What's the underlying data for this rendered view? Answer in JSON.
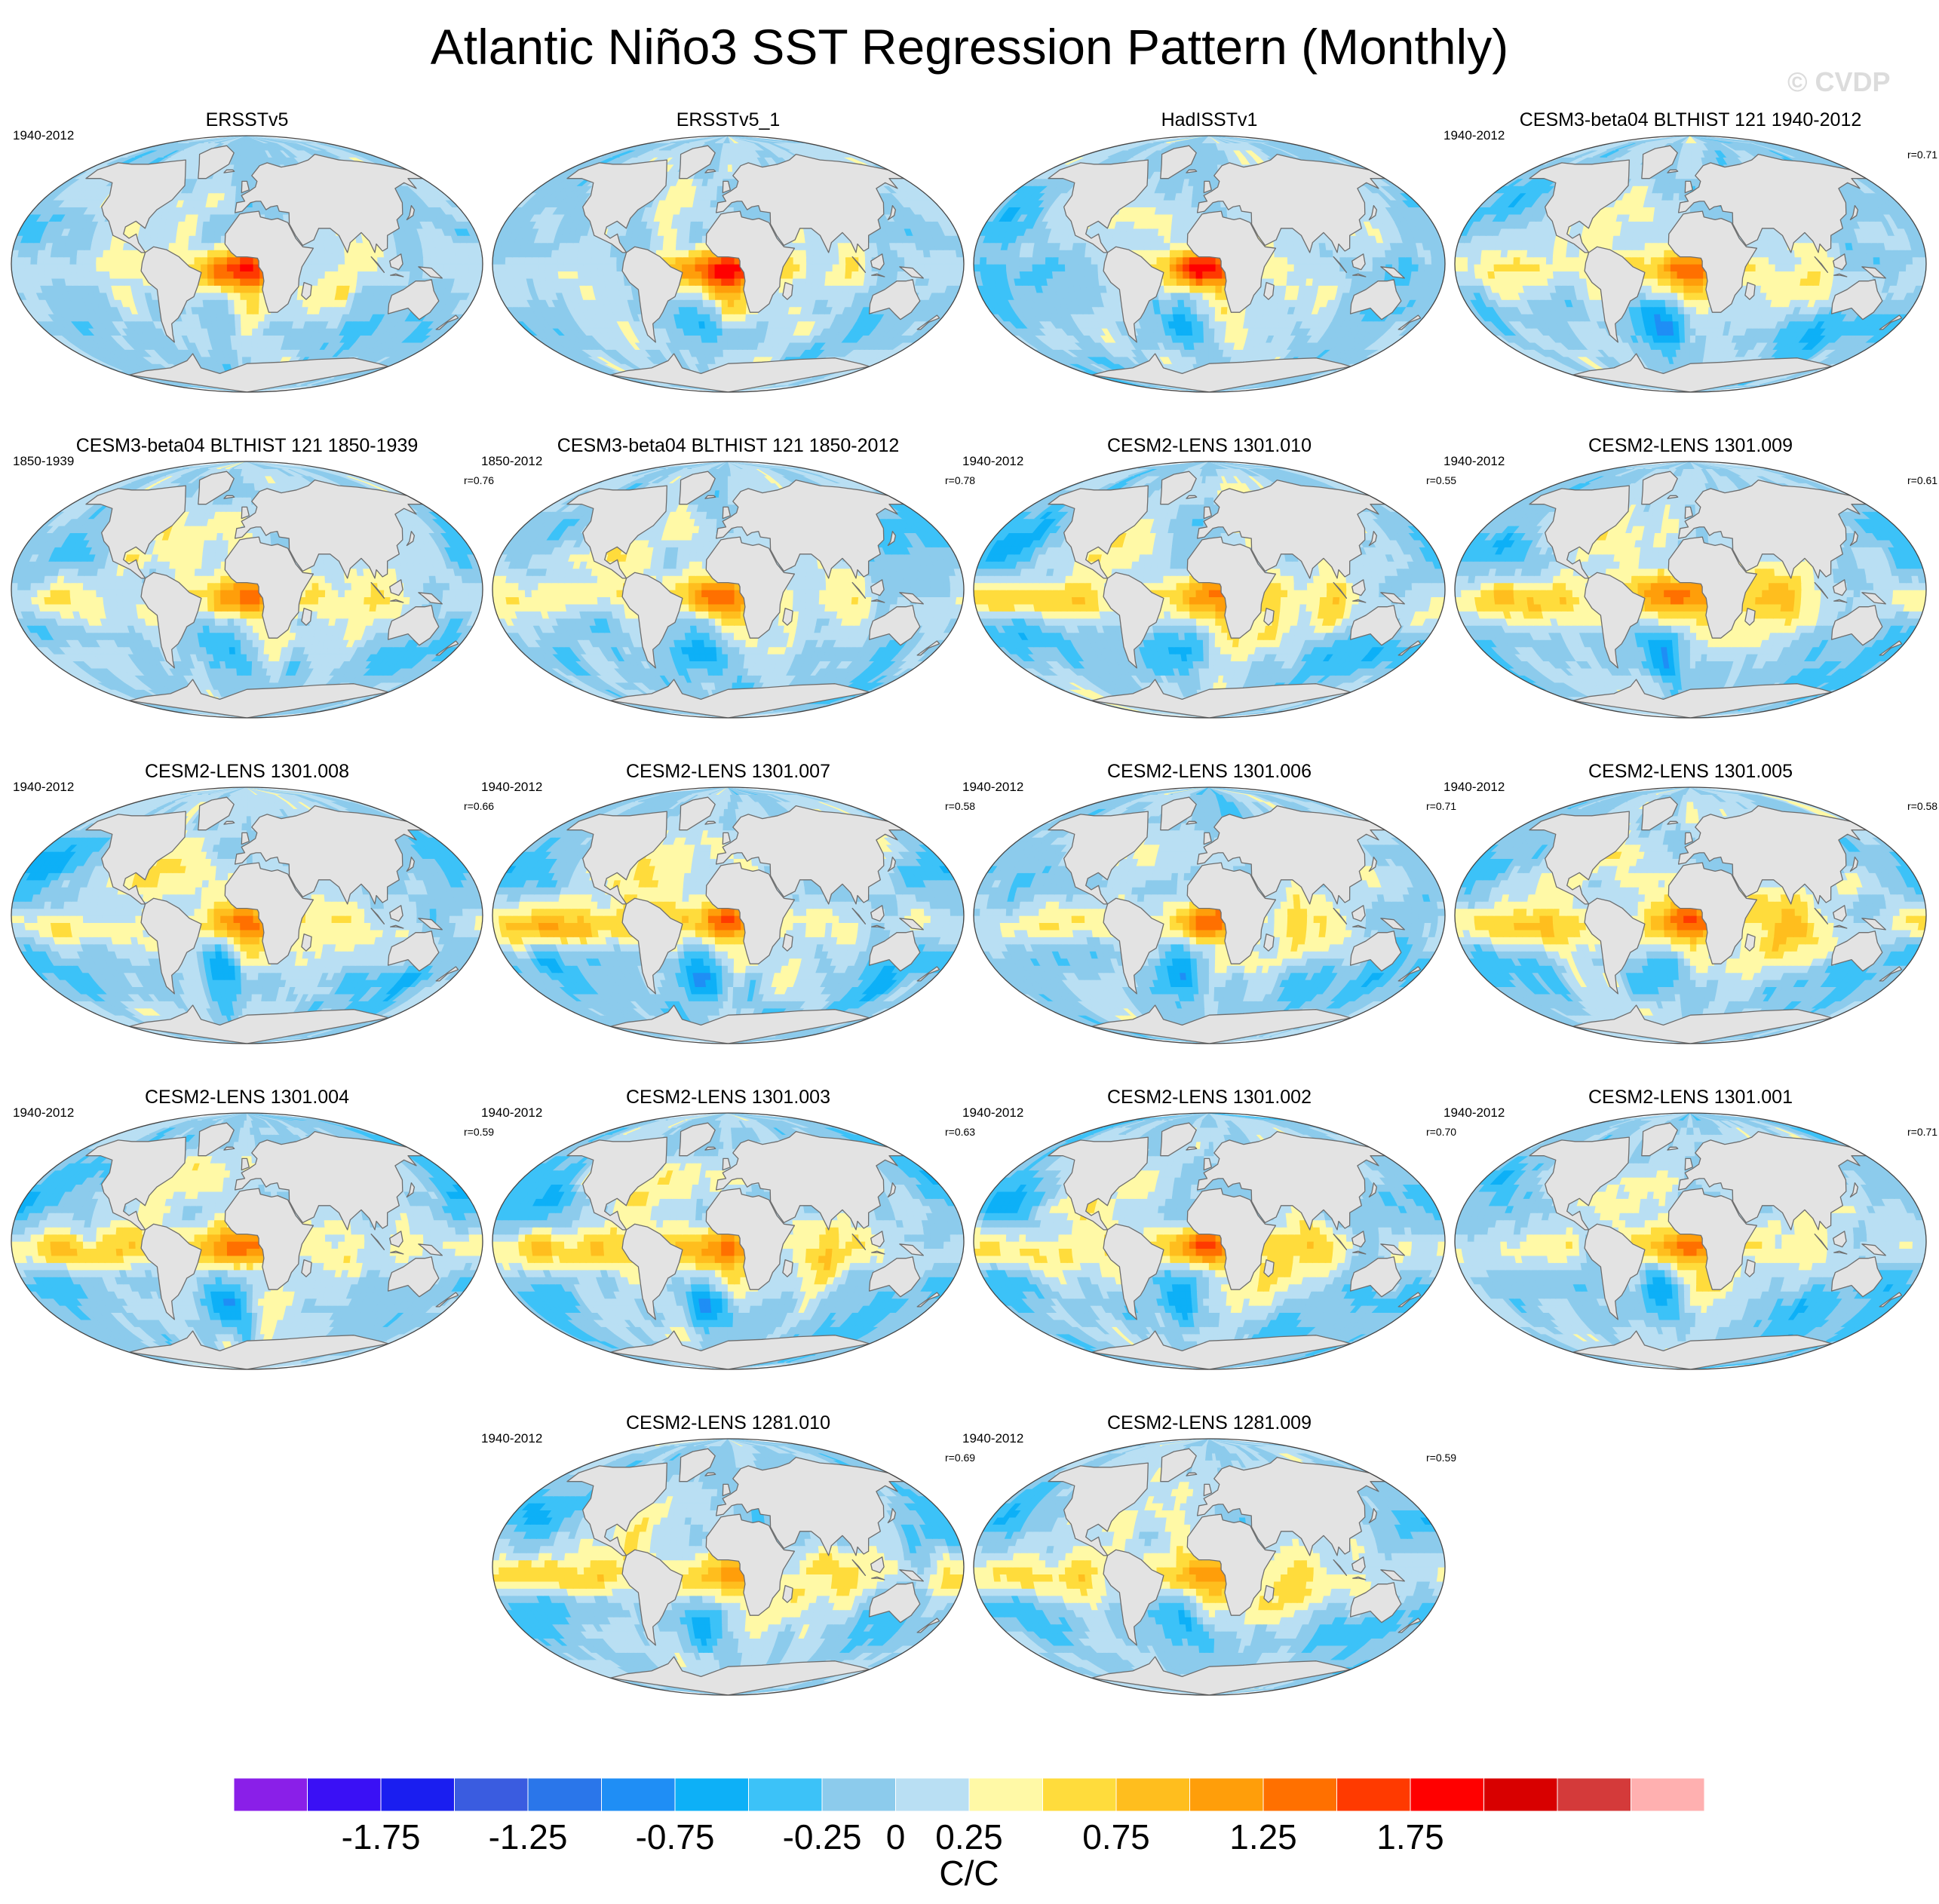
{
  "title": "Atlantic Niño3 SST Regression Pattern (Monthly)",
  "watermark": "© CVDP",
  "panels": [
    {
      "name": "ERSSTv5",
      "period": "1940-2012",
      "corr": "",
      "pattern": {
        "atl": 1.25,
        "pac": 0.15,
        "ind": 0.4,
        "sa": -0.4,
        "np": -0.1,
        "seed": 3
      }
    },
    {
      "name": "ERSSTv5_1",
      "period": "",
      "corr": "",
      "pattern": {
        "atl": 1.4,
        "pac": 0.2,
        "ind": 0.4,
        "sa": -0.35,
        "np": 0.0,
        "seed": 7
      }
    },
    {
      "name": "HadISSTv1",
      "period": "",
      "corr": "",
      "pattern": {
        "atl": 1.4,
        "pac": -0.35,
        "ind": 0.3,
        "sa": -0.45,
        "np": -0.25,
        "seed": 11
      }
    },
    {
      "name": "CESM3-beta04 BLTHIST 121 1940-2012",
      "period": "1940-2012",
      "corr": "r=0.71",
      "pattern": {
        "atl": 1.1,
        "pac": 0.35,
        "ind": 0.45,
        "sa": -0.7,
        "np": -0.3,
        "seed": 13
      }
    },
    {
      "name": "CESM3-beta04 BLTHIST 121 1850-1939",
      "period": "1850-1939",
      "corr": "r=0.76",
      "pattern": {
        "atl": 1.1,
        "pac": 0.55,
        "ind": 0.5,
        "sa": -0.6,
        "np": -0.3,
        "seed": 17
      }
    },
    {
      "name": "CESM3-beta04 BLTHIST 121 1850-2012",
      "period": "1850-2012",
      "corr": "r=0.78",
      "pattern": {
        "atl": 1.05,
        "pac": 0.45,
        "ind": 0.45,
        "sa": -0.55,
        "np": -0.2,
        "seed": 19
      }
    },
    {
      "name": "CESM2-LENS 1301.010",
      "period": "1940-2012",
      "corr": "r=0.55",
      "pattern": {
        "atl": 0.95,
        "pac": 0.9,
        "ind": 0.6,
        "sa": -0.7,
        "np": -0.6,
        "seed": 23
      }
    },
    {
      "name": "CESM2-LENS 1301.009",
      "period": "1940-2012",
      "corr": "r=0.61",
      "pattern": {
        "atl": 1.0,
        "pac": 0.85,
        "ind": 0.7,
        "sa": -0.7,
        "np": -0.6,
        "seed": 29
      }
    },
    {
      "name": "CESM2-LENS 1301.008",
      "period": "1940-2012",
      "corr": "r=0.66",
      "pattern": {
        "atl": 0.95,
        "pac": 0.65,
        "ind": 0.55,
        "sa": -0.6,
        "np": -0.4,
        "seed": 31
      }
    },
    {
      "name": "CESM2-LENS 1301.007",
      "period": "1940-2012",
      "corr": "r=0.58",
      "pattern": {
        "atl": 0.95,
        "pac": 1.05,
        "ind": 0.55,
        "sa": -0.75,
        "np": -0.65,
        "seed": 37
      }
    },
    {
      "name": "CESM2-LENS 1301.006",
      "period": "1940-2012",
      "corr": "r=0.71",
      "pattern": {
        "atl": 0.95,
        "pac": 0.45,
        "ind": 0.45,
        "sa": -0.65,
        "np": -0.4,
        "seed": 41
      }
    },
    {
      "name": "CESM2-LENS 1301.005",
      "period": "1940-2012",
      "corr": "r=0.58",
      "pattern": {
        "atl": 0.95,
        "pac": 0.85,
        "ind": 0.7,
        "sa": -0.7,
        "np": -0.55,
        "seed": 43
      }
    },
    {
      "name": "CESM2-LENS 1301.004",
      "period": "1940-2012",
      "corr": "r=0.59",
      "pattern": {
        "atl": 0.95,
        "pac": 0.8,
        "ind": 0.55,
        "sa": -0.65,
        "np": -0.45,
        "seed": 47
      }
    },
    {
      "name": "CESM2-LENS 1301.003",
      "period": "1940-2012",
      "corr": "r=0.63",
      "pattern": {
        "atl": 0.95,
        "pac": 0.75,
        "ind": 0.65,
        "sa": -0.7,
        "np": -0.55,
        "seed": 53
      }
    },
    {
      "name": "CESM2-LENS 1301.002",
      "period": "1940-2012",
      "corr": "r=0.70",
      "pattern": {
        "atl": 1.0,
        "pac": 0.7,
        "ind": 0.6,
        "sa": -0.65,
        "np": -0.5,
        "seed": 59
      }
    },
    {
      "name": "CESM2-LENS 1301.001",
      "period": "1940-2012",
      "corr": "r=0.71",
      "pattern": {
        "atl": 0.95,
        "pac": 0.45,
        "ind": 0.5,
        "sa": -0.7,
        "np": -0.35,
        "seed": 61
      }
    },
    {
      "name": "CESM2-LENS 1281.010",
      "period": "1940-2012",
      "corr": "r=0.69",
      "pattern": {
        "atl": 0.95,
        "pac": 0.75,
        "ind": 0.6,
        "sa": -0.6,
        "np": -0.6,
        "seed": 67
      }
    },
    {
      "name": "CESM2-LENS 1281.009",
      "period": "1940-2012",
      "corr": "r=0.59",
      "pattern": {
        "atl": 0.9,
        "pac": 0.7,
        "ind": 0.6,
        "sa": -0.65,
        "np": -0.6,
        "seed": 71
      }
    }
  ],
  "colorbar": {
    "units": "C/C",
    "colors": [
      "#8a1fe8",
      "#3a10f5",
      "#1a1ef0",
      "#3a5ce0",
      "#2a76ea",
      "#1f8ef5",
      "#0db0f7",
      "#3cc2f8",
      "#8ccbec",
      "#b9dff3",
      "#fff9a6",
      "#ffdc3c",
      "#ffbe1e",
      "#ff9e0a",
      "#ff7000",
      "#ff3a00",
      "#ff0000",
      "#d80000",
      "#d43a3a",
      "#ffb0b0"
    ],
    "bounds": [
      -2.25,
      -2.0,
      -1.75,
      -1.5,
      -1.25,
      -1.0,
      -0.75,
      -0.5,
      -0.25,
      0,
      0.25,
      0.5,
      0.75,
      1.0,
      1.25,
      1.5,
      1.75,
      2.0,
      2.25,
      2.5,
      2.75
    ],
    "tick_labels": [
      "-1.75",
      "-1.25",
      "-0.75",
      "-0.25",
      "0",
      "0.25",
      "0.75",
      "1.25",
      "1.75"
    ]
  },
  "land_color": "#e3e3e3",
  "coast_color": "#6e6e6e"
}
